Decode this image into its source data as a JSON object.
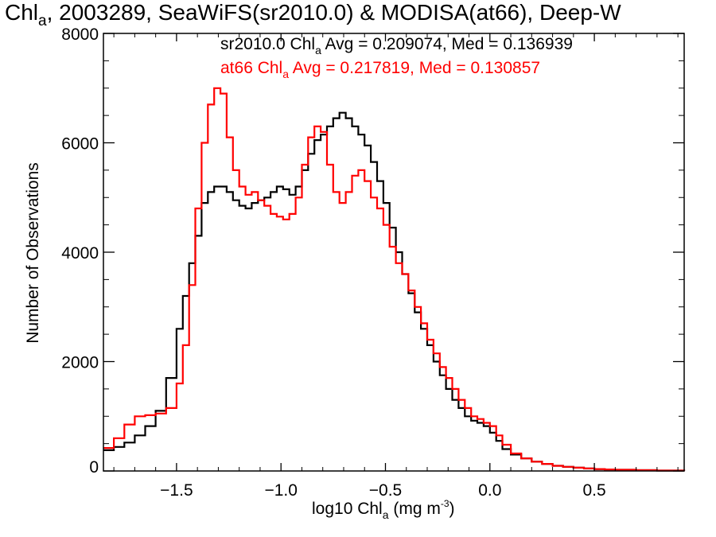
{
  "title": {
    "prefix": "Chl",
    "sub": "a",
    "rest": ", 2003289, SeaWiFS(sr2010.0) & MODISA(at66), Deep-W"
  },
  "annotations": {
    "black": {
      "prefix": "sr2010.0 Chl",
      "sub": "a",
      "rest": " Avg = 0.209074, Med = 0.136939",
      "color": "#000000"
    },
    "red": {
      "prefix": "at66 Chl",
      "sub": "a",
      "rest": " Avg = 0.217819, Med = 0.130857",
      "color": "#ff0000"
    }
  },
  "axes": {
    "xlabel": {
      "prefix": "log10 Chl",
      "sub": "a",
      "mid": " (mg m",
      "sup": "-3",
      "end": ")"
    },
    "ylabel": "Number of Observations"
  },
  "chart_data": {
    "type": "line",
    "style": "step",
    "xlim": [
      -1.85,
      0.93
    ],
    "ylim": [
      0,
      8000
    ],
    "xticks": [
      -1.5,
      -1.0,
      -0.5,
      0.0,
      0.5
    ],
    "xtick_labels": [
      "−1.5",
      "−1.0",
      "−0.5",
      "0.0",
      "0.5"
    ],
    "yticks": [
      0,
      2000,
      4000,
      6000,
      8000
    ],
    "ytick_labels": [
      "0",
      "2000",
      "4000",
      "6000",
      "8000"
    ],
    "grid": false,
    "series": [
      {
        "name": "sr2010.0",
        "color": "#000000",
        "x": [
          -1.85,
          -1.8,
          -1.75,
          -1.7,
          -1.65,
          -1.6,
          -1.55,
          -1.5,
          -1.47,
          -1.44,
          -1.41,
          -1.38,
          -1.35,
          -1.32,
          -1.29,
          -1.26,
          -1.23,
          -1.2,
          -1.17,
          -1.14,
          -1.11,
          -1.08,
          -1.05,
          -1.02,
          -0.99,
          -0.96,
          -0.93,
          -0.9,
          -0.87,
          -0.84,
          -0.81,
          -0.78,
          -0.75,
          -0.72,
          -0.69,
          -0.66,
          -0.63,
          -0.6,
          -0.57,
          -0.54,
          -0.51,
          -0.48,
          -0.45,
          -0.42,
          -0.39,
          -0.36,
          -0.33,
          -0.3,
          -0.27,
          -0.24,
          -0.21,
          -0.18,
          -0.15,
          -0.12,
          -0.09,
          -0.06,
          -0.03,
          0.0,
          0.03,
          0.06,
          0.1,
          0.15,
          0.2,
          0.25,
          0.3,
          0.35,
          0.4,
          0.45,
          0.5,
          0.55,
          0.6,
          0.7,
          0.8,
          0.93
        ],
        "values": [
          380,
          440,
          520,
          650,
          820,
          1100,
          1700,
          2600,
          3200,
          3800,
          4300,
          4900,
          5100,
          5200,
          5200,
          5100,
          4950,
          4850,
          4800,
          4900,
          4950,
          5000,
          5100,
          5200,
          5150,
          5050,
          5200,
          5500,
          5800,
          6050,
          6150,
          6300,
          6450,
          6550,
          6450,
          6300,
          6150,
          5950,
          5650,
          5300,
          4900,
          4450,
          4000,
          3600,
          3250,
          2900,
          2600,
          2300,
          2000,
          1750,
          1500,
          1300,
          1150,
          1000,
          920,
          880,
          820,
          700,
          550,
          400,
          300,
          230,
          170,
          130,
          95,
          75,
          60,
          45,
          35,
          28,
          22,
          15,
          8,
          3
        ]
      },
      {
        "name": "at66",
        "color": "#ff0000",
        "x": [
          -1.85,
          -1.8,
          -1.75,
          -1.7,
          -1.65,
          -1.6,
          -1.55,
          -1.5,
          -1.47,
          -1.44,
          -1.41,
          -1.38,
          -1.35,
          -1.32,
          -1.29,
          -1.26,
          -1.23,
          -1.2,
          -1.17,
          -1.14,
          -1.11,
          -1.08,
          -1.05,
          -1.02,
          -0.99,
          -0.96,
          -0.93,
          -0.9,
          -0.87,
          -0.84,
          -0.81,
          -0.78,
          -0.75,
          -0.72,
          -0.69,
          -0.66,
          -0.63,
          -0.6,
          -0.57,
          -0.54,
          -0.51,
          -0.48,
          -0.45,
          -0.42,
          -0.39,
          -0.36,
          -0.33,
          -0.3,
          -0.27,
          -0.24,
          -0.21,
          -0.18,
          -0.15,
          -0.12,
          -0.09,
          -0.06,
          -0.03,
          0.0,
          0.03,
          0.06,
          0.1,
          0.15,
          0.2,
          0.25,
          0.3,
          0.35,
          0.4,
          0.45,
          0.5,
          0.55,
          0.6,
          0.7,
          0.8,
          0.93
        ],
        "values": [
          420,
          600,
          850,
          1000,
          1020,
          1050,
          1150,
          1600,
          2300,
          3400,
          4800,
          6000,
          6700,
          7000,
          6900,
          6100,
          5500,
          5200,
          5050,
          5100,
          4950,
          4850,
          4700,
          4650,
          4600,
          4700,
          5000,
          5600,
          6100,
          6300,
          6200,
          5600,
          5100,
          4900,
          5100,
          5400,
          5500,
          5300,
          5000,
          4800,
          4500,
          4100,
          3800,
          3600,
          3300,
          3000,
          2700,
          2400,
          2150,
          1900,
          1700,
          1500,
          1300,
          1150,
          1000,
          950,
          880,
          820,
          650,
          480,
          320,
          230,
          170,
          130,
          95,
          75,
          60,
          45,
          35,
          28,
          22,
          15,
          8,
          3
        ]
      }
    ]
  }
}
